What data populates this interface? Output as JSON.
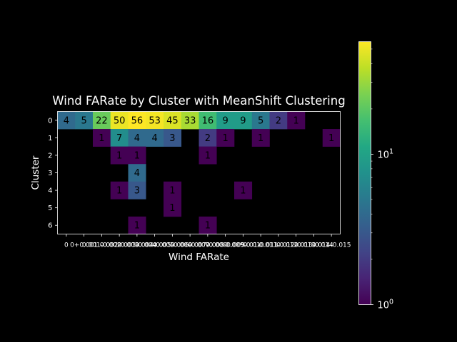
{
  "chart_data": {
    "type": "heatmap",
    "title": "Wind FARate by Cluster with MeanShift Clustering",
    "xlabel": "Wind FARate",
    "ylabel": "Cluster",
    "x_categories": [
      "0",
      "0+0.001",
      "0.001-0.002",
      "0.002-0.003",
      "0.003-0.004",
      "0.004-0.005",
      "0.005-0.006",
      "0.006-0.007",
      "0.007-0.008",
      "0.008-0.009",
      "0.009-0.01",
      "0.01-0.011",
      "0.011-0.012",
      "0.012-0.013",
      "0.013-0.014",
      "0.014-0.015"
    ],
    "y_categories": [
      "0",
      "1",
      "2",
      "3",
      "4",
      "5",
      "6"
    ],
    "values": [
      [
        4,
        5,
        22,
        50,
        56,
        53,
        45,
        33,
        16,
        9,
        9,
        5,
        2,
        1,
        null,
        null
      ],
      [
        null,
        null,
        1,
        7,
        4,
        4,
        3,
        null,
        2,
        1,
        null,
        1,
        null,
        null,
        null,
        1
      ],
      [
        null,
        null,
        null,
        1,
        1,
        null,
        null,
        null,
        1,
        null,
        null,
        null,
        null,
        null,
        null,
        null
      ],
      [
        null,
        null,
        null,
        null,
        4,
        null,
        null,
        null,
        null,
        null,
        null,
        null,
        null,
        null,
        null,
        null
      ],
      [
        null,
        null,
        null,
        1,
        3,
        null,
        1,
        null,
        null,
        null,
        1,
        null,
        null,
        null,
        null,
        null
      ],
      [
        null,
        null,
        null,
        null,
        null,
        null,
        1,
        null,
        null,
        null,
        null,
        null,
        null,
        null,
        null,
        null
      ],
      [
        null,
        null,
        null,
        null,
        1,
        null,
        null,
        null,
        1,
        null,
        null,
        null,
        null,
        null,
        null,
        null
      ]
    ],
    "colormap": "viridis",
    "color_scale": "log",
    "vmin": 1,
    "vmax": 56,
    "colorbar_ticks": [
      {
        "value": 1,
        "base": "10",
        "exp": "0"
      },
      {
        "value": 10,
        "base": "10",
        "exp": "1"
      }
    ],
    "background": "#000000",
    "grid": false
  }
}
